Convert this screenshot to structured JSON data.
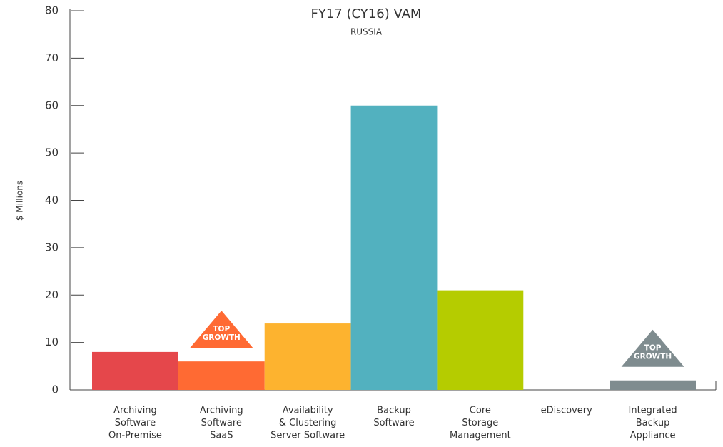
{
  "chart_data": {
    "type": "bar",
    "title": "FY17 (CY16) VAM",
    "subtitle": "RUSSIA",
    "y_label": "$ Millions",
    "categories": [
      [
        "Archiving",
        "Software",
        "On-Premise"
      ],
      [
        "Archiving",
        "Software",
        "SaaS"
      ],
      [
        "Availability",
        "& Clustering",
        "Server Software"
      ],
      [
        "Backup",
        "Software"
      ],
      [
        "Core",
        "Storage",
        "Management"
      ],
      [
        "eDiscovery"
      ],
      [
        "Integrated",
        "Backup",
        "Appliance"
      ]
    ],
    "values": [
      8,
      6,
      14,
      60,
      21,
      0,
      2
    ],
    "colors": [
      "#e5474b",
      "#ff6a33",
      "#fdb32f",
      "#52b1bf",
      "#b5cc00",
      "#999999",
      "#7f8c8f"
    ],
    "badges": [
      null,
      [
        "TOP",
        "GROWTH"
      ],
      null,
      null,
      null,
      null,
      [
        "TOP",
        "GROWTH"
      ]
    ],
    "ylim": [
      0,
      80
    ],
    "yticks": [
      0,
      10,
      20,
      30,
      40,
      50,
      60,
      70,
      80
    ],
    "grid": false
  }
}
